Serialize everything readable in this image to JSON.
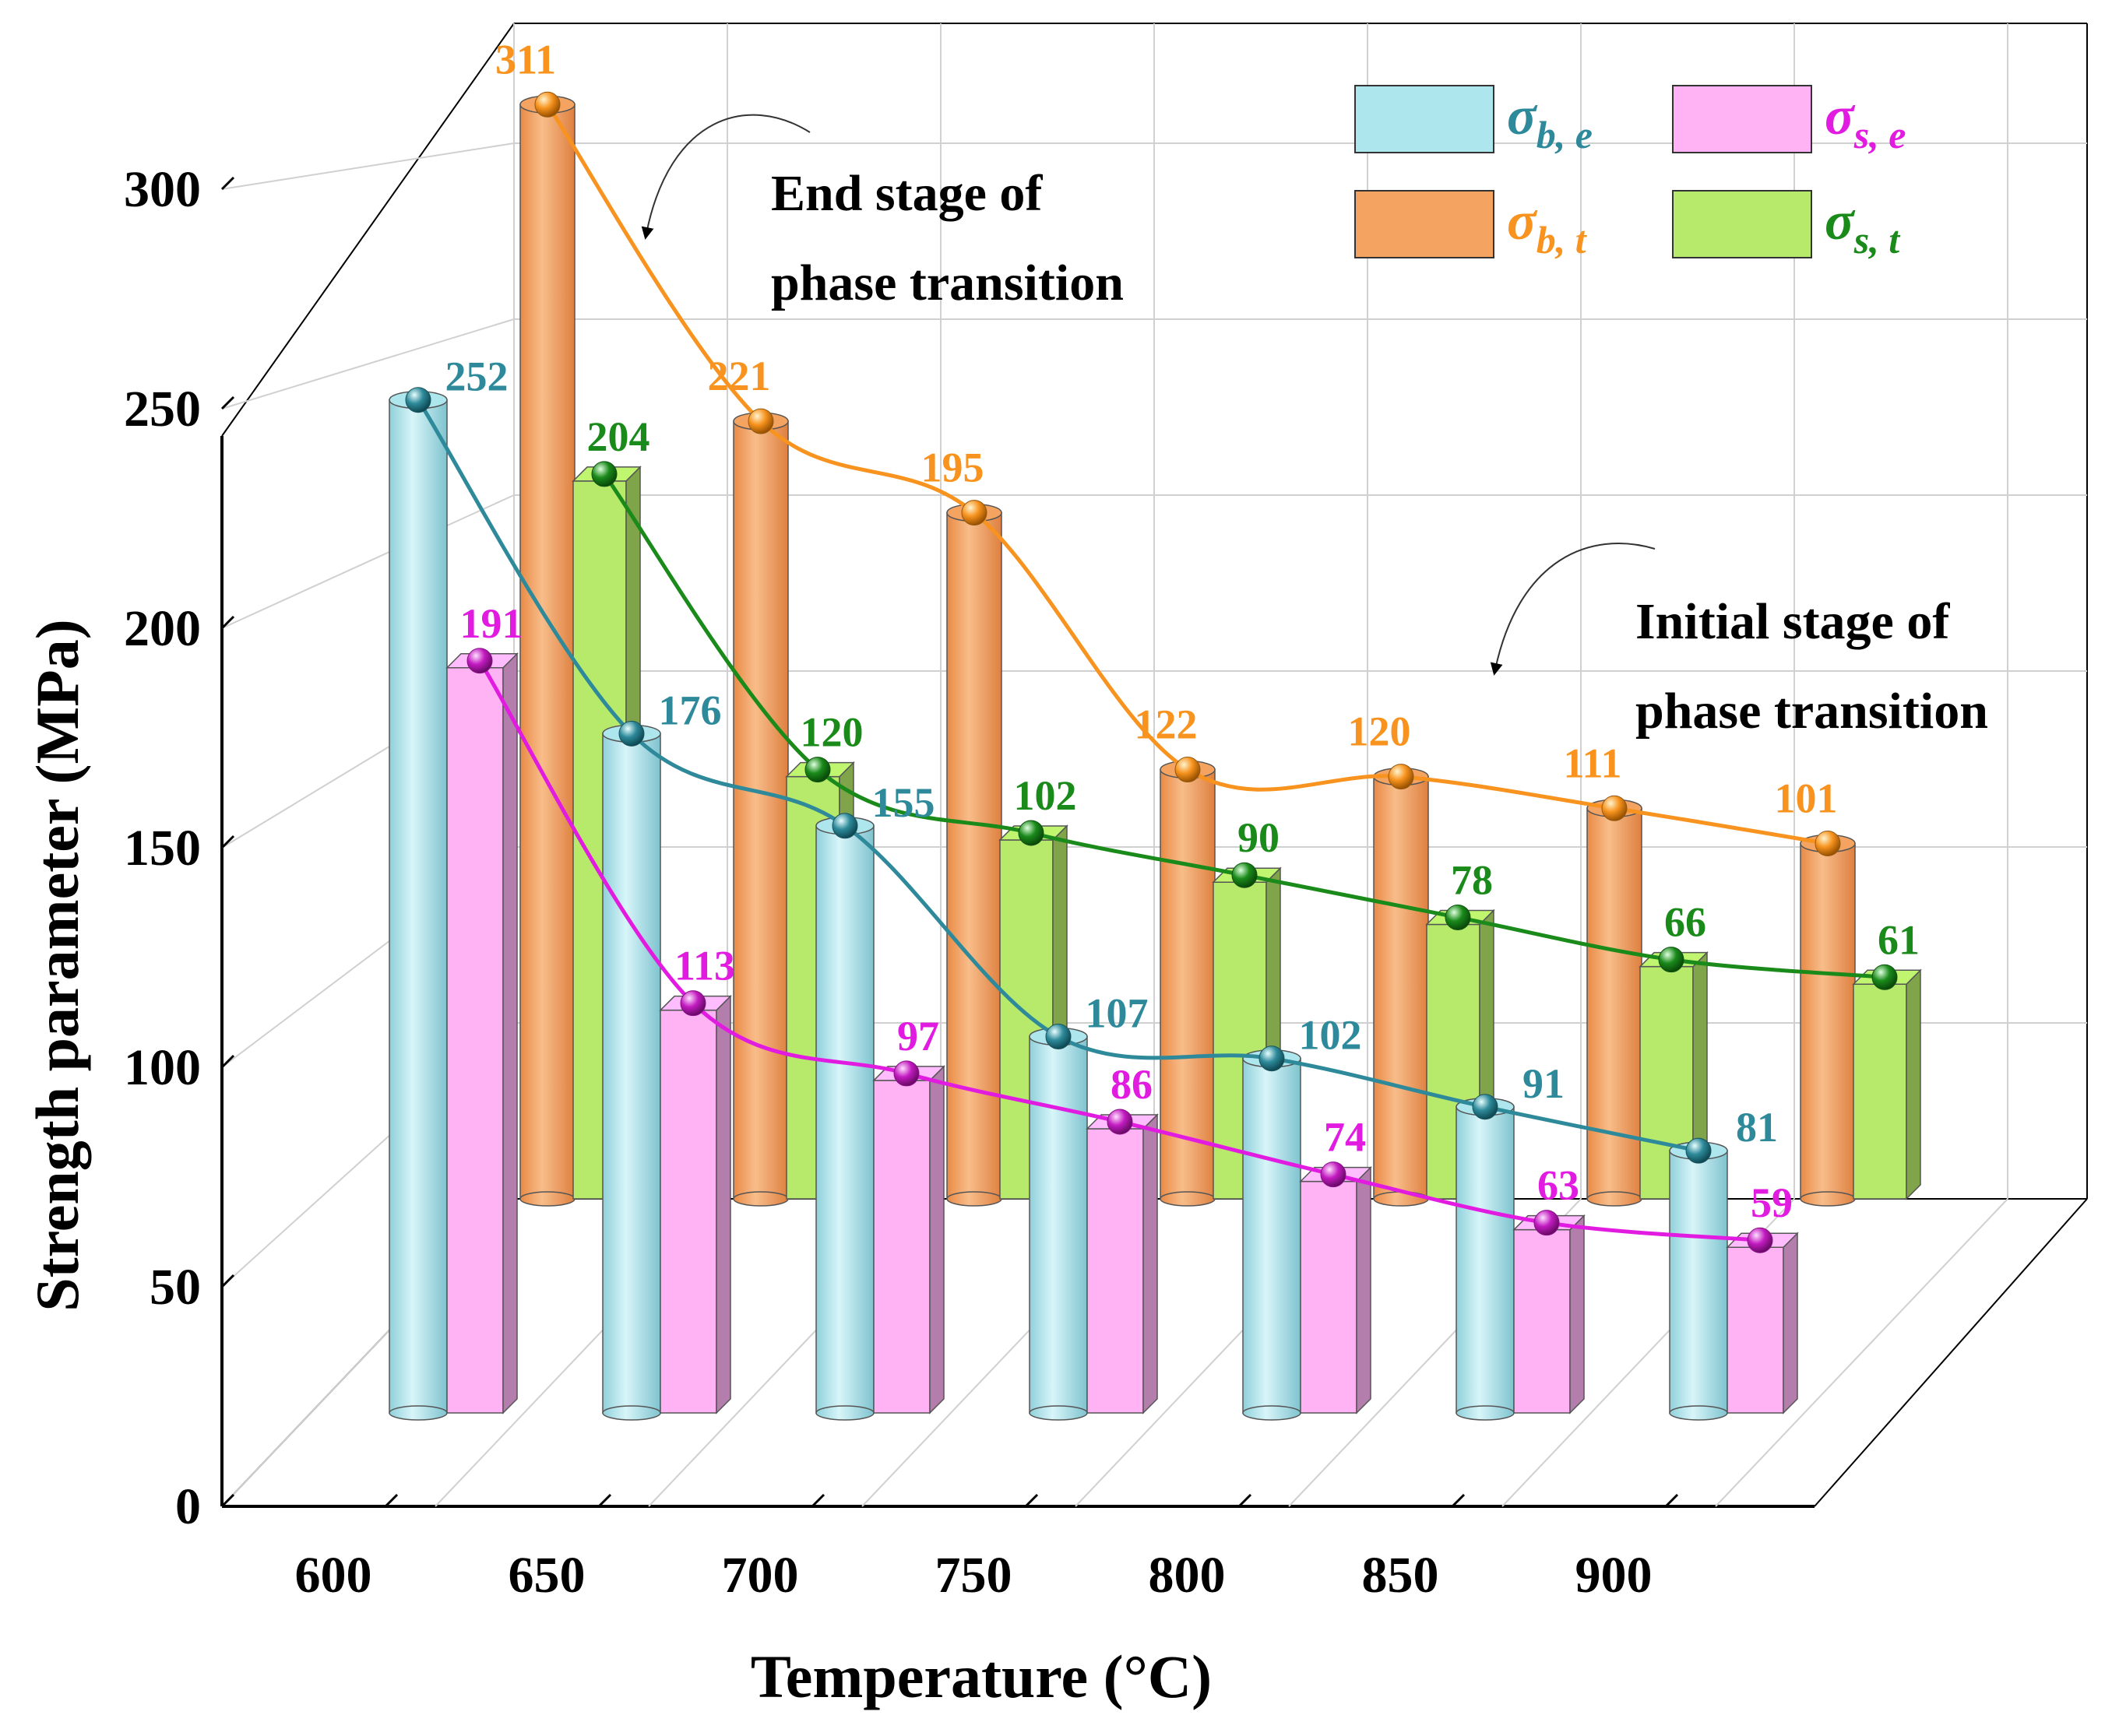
{
  "chart_data": {
    "type": "bar",
    "ylabel": "Strength parameter (MPa)",
    "xlabel": "Temperature (°C)",
    "categories": [
      "600",
      "650",
      "700",
      "750",
      "800",
      "850",
      "900"
    ],
    "ylim": [
      0,
      350
    ],
    "yticks": [
      "0",
      "50",
      "100",
      "150",
      "200",
      "250",
      "300",
      "350"
    ],
    "grid": true,
    "legend_position": "top-right",
    "colors": {
      "sigma_b_e": "#aee6ee",
      "sigma_s_e": "#ffb3f5",
      "sigma_b_t": "#f4a360",
      "sigma_s_t": "#b7ea6a",
      "sigma_b_e_text": "#2e8a9a",
      "sigma_s_e_text": "#e21be0",
      "sigma_b_t_text": "#f7931e",
      "sigma_s_t_text": "#1a8a1a"
    },
    "series": [
      {
        "key": "sigma_b_e",
        "symbol": "σ",
        "subscript": "b, e",
        "row": "front",
        "shape": "cylinder",
        "values": [
          252,
          176,
          155,
          107,
          102,
          91,
          81
        ]
      },
      {
        "key": "sigma_s_e",
        "symbol": "σ",
        "subscript": "s, e",
        "row": "front",
        "shape": "box",
        "values": [
          191,
          113,
          97,
          86,
          74,
          63,
          59
        ]
      },
      {
        "key": "sigma_b_t",
        "symbol": "σ",
        "subscript": "b, t",
        "row": "back",
        "shape": "cylinder",
        "values": [
          311,
          221,
          195,
          122,
          120,
          111,
          101
        ]
      },
      {
        "key": "sigma_s_t",
        "symbol": "σ",
        "subscript": "s, t",
        "row": "back",
        "shape": "box",
        "values": [
          204,
          120,
          102,
          90,
          78,
          66,
          61
        ]
      }
    ],
    "annotations": [
      {
        "lines": [
          "End stage of",
          "phase transition"
        ]
      },
      {
        "lines": [
          "Initial stage of",
          "phase transition"
        ]
      }
    ]
  }
}
